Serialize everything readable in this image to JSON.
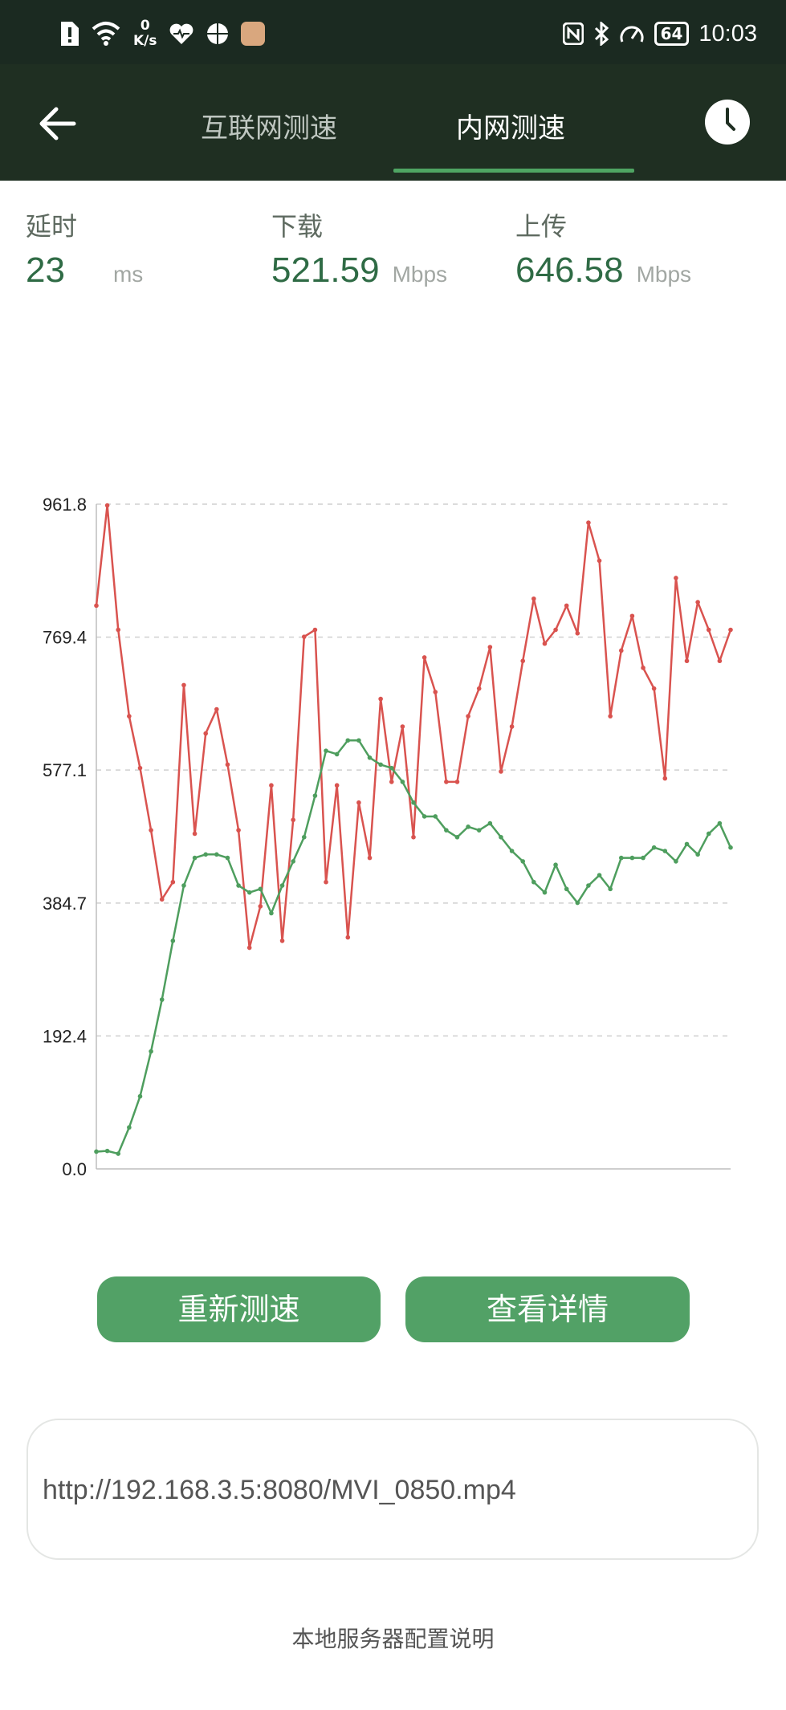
{
  "status_bar": {
    "speed_value": "0",
    "speed_unit": "K/s",
    "battery": "64",
    "time": "10:03",
    "left_icons": [
      "alert-icon",
      "wifi-icon",
      "health-heart-icon",
      "browser-icon",
      "app-icon"
    ],
    "right_icons": [
      "nfc-icon",
      "bluetooth-icon",
      "speedometer-icon",
      "battery-icon"
    ]
  },
  "app_bar": {
    "tabs": [
      {
        "label": "互联网测速",
        "active": false
      },
      {
        "label": "内网测速",
        "active": true
      }
    ],
    "back_icon": "back-arrow-icon",
    "history_icon": "clock-icon"
  },
  "stats": {
    "latency": {
      "label": "延时",
      "value": "23",
      "unit": "ms"
    },
    "download": {
      "label": "下载",
      "value": "521.59",
      "unit": "Mbps"
    },
    "upload": {
      "label": "上传",
      "value": "646.58",
      "unit": "Mbps"
    }
  },
  "chart_data": {
    "type": "line",
    "ylim": [
      0,
      961.8
    ],
    "yticks": [
      "0.0",
      "192.4",
      "384.7",
      "577.1",
      "769.4",
      "961.8"
    ],
    "grid": true,
    "colors": {
      "download": "#d9534f",
      "upload": "#4e9e5e"
    },
    "series": [
      {
        "values": [
          815,
          960,
          780,
          655,
          580,
          490,
          390,
          415,
          700,
          485,
          630,
          665,
          585,
          490,
          320,
          380,
          555,
          330,
          505,
          770,
          780,
          415,
          555,
          335,
          530,
          450,
          680,
          560,
          640,
          480,
          740,
          690,
          560,
          560,
          655,
          695,
          755,
          575,
          640,
          735,
          825,
          760,
          780,
          815,
          775,
          935,
          880,
          655,
          750,
          800,
          725,
          695,
          565,
          855,
          735,
          820,
          780,
          735,
          780
        ]
      },
      {
        "values": [
          25,
          26,
          22,
          60,
          105,
          170,
          245,
          330,
          410,
          450,
          455,
          455,
          450,
          410,
          400,
          405,
          370,
          410,
          445,
          480,
          540,
          605,
          600,
          620,
          620,
          595,
          585,
          580,
          560,
          530,
          510,
          510,
          490,
          480,
          495,
          490,
          500,
          480,
          460,
          445,
          415,
          400,
          440,
          405,
          385,
          410,
          425,
          405,
          450,
          450,
          450,
          465,
          460,
          445,
          470,
          455,
          485,
          500,
          465
        ]
      }
    ]
  },
  "buttons": {
    "retest": "重新测速",
    "details": "查看详情"
  },
  "url_input": {
    "value": "http://192.168.3.5:8080/MVI_0850.mp4"
  },
  "footer_link": "本地服务器配置说明"
}
